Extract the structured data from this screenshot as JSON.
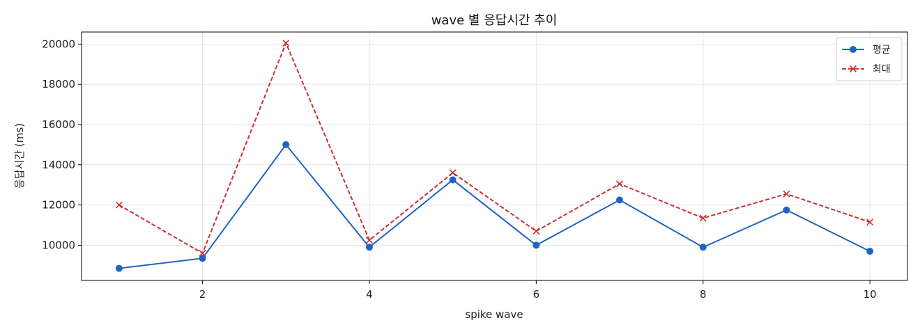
{
  "chart_data": {
    "type": "line",
    "title": "wave 별 응답시간 추이",
    "xlabel": "spike wave",
    "ylabel": "응답시간 (ms)",
    "x": [
      1,
      2,
      3,
      4,
      5,
      6,
      7,
      8,
      9,
      10
    ],
    "xlim": [
      0.55,
      10.45
    ],
    "ylim": [
      8250,
      20600
    ],
    "xticks": [
      2,
      4,
      6,
      8,
      10
    ],
    "yticks": [
      10000,
      12000,
      14000,
      16000,
      18000,
      20000
    ],
    "grid": true,
    "legend_position": "top-right",
    "series": [
      {
        "name": "평균",
        "values": [
          8850,
          9350,
          15000,
          9900,
          13250,
          10000,
          12250,
          9900,
          11750,
          9700
        ],
        "color": "#1f63c5",
        "line_style": "solid",
        "marker": "circle"
      },
      {
        "name": "최대",
        "values": [
          12000,
          9600,
          20050,
          10250,
          13600,
          10700,
          13050,
          11350,
          12550,
          11150
        ],
        "color": "#cc2f30",
        "line_style": "dashed",
        "marker": "x"
      }
    ]
  }
}
